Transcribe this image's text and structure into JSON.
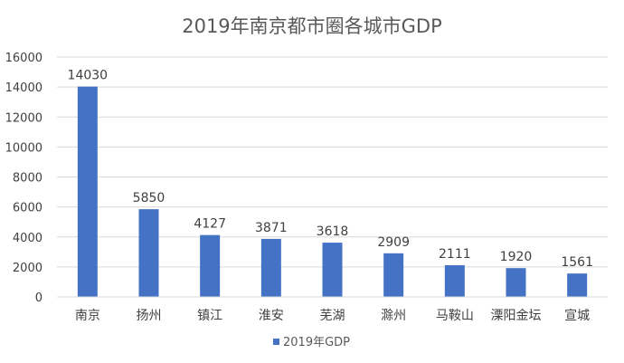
{
  "chart_data": {
    "type": "bar",
    "title": "2019年南京都市圈各城市GDP",
    "xlabel": "",
    "ylabel": "",
    "categories": [
      "南京",
      "扬州",
      "镇江",
      "淮安",
      "芜湖",
      "滁州",
      "马鞍山",
      "溧阳金坛",
      "宣城"
    ],
    "series": [
      {
        "name": "2019年GDP",
        "values": [
          14030,
          5850,
          4127,
          3871,
          3618,
          2909,
          2111,
          1920,
          1561
        ]
      }
    ],
    "ylim": [
      0,
      16000
    ],
    "yticks": [
      0,
      2000,
      4000,
      6000,
      8000,
      10000,
      12000,
      14000,
      16000
    ],
    "grid": true,
    "legend_position": "bottom",
    "colors": {
      "bar": "#4472C4",
      "grid": "#D9D9D9",
      "text": "#404040",
      "title": "#595959"
    }
  }
}
